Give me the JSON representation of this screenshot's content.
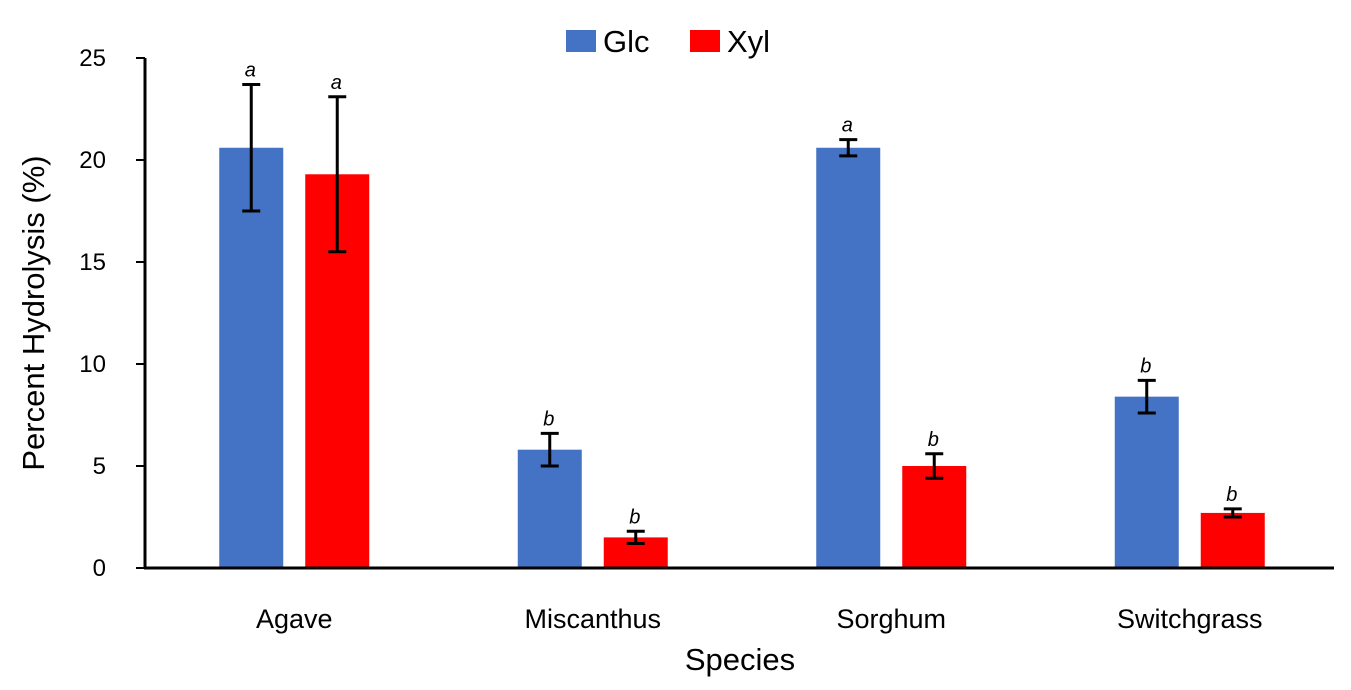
{
  "chart_data": {
    "type": "bar",
    "title": "",
    "xlabel": "Species",
    "ylabel": "Percent Hydrolysis (%)",
    "ylim": [
      0,
      25
    ],
    "yticks": [
      0,
      5,
      10,
      15,
      20,
      25
    ],
    "grid": false,
    "legend_position": "top-center",
    "categories": [
      "Agave",
      "Miscanthus",
      "Sorghum",
      "Switchgrass"
    ],
    "series": [
      {
        "name": "Glc",
        "color": "#4472C4",
        "values": [
          20.6,
          5.8,
          20.6,
          8.4
        ],
        "error": [
          3.1,
          0.8,
          0.4,
          0.8
        ],
        "significance": [
          "a",
          "b",
          "a",
          "b"
        ]
      },
      {
        "name": "Xyl",
        "color": "#FF0000",
        "values": [
          19.3,
          1.5,
          5.0,
          2.7
        ],
        "error": [
          3.8,
          0.3,
          0.6,
          0.2
        ],
        "significance": [
          "a",
          "b",
          "b",
          "b"
        ]
      }
    ]
  }
}
